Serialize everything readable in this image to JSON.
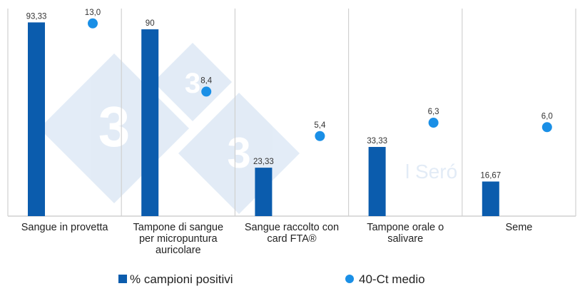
{
  "chart_data": {
    "type": "bar+scatter",
    "categories": [
      "Sangue in provetta",
      "Tampone di sangue per micropuntura auricolare",
      "Sangue raccolto con card FTA®",
      "Tampone orale o salivare",
      "Seme"
    ],
    "category_lines": [
      [
        "Sangue in provetta"
      ],
      [
        "Tampone di sangue",
        "per micropuntura",
        "auricolare"
      ],
      [
        "Sangue raccolto con",
        "card FTA®"
      ],
      [
        "Tampone orale o",
        "salivare"
      ],
      [
        "Seme"
      ]
    ],
    "series": [
      {
        "name": "% campioni positivi",
        "type": "bar",
        "axis": "primary",
        "values": [
          93.33,
          90,
          23.33,
          33.33,
          16.67
        ],
        "labels": [
          "93,33",
          "90",
          "23,33",
          "33,33",
          "16,67"
        ],
        "color": "#0b5cad"
      },
      {
        "name": "40-Ct medio",
        "type": "scatter",
        "axis": "secondary",
        "values": [
          13.0,
          8.4,
          5.4,
          6.3,
          6.0
        ],
        "labels": [
          "13,0",
          "8,4",
          "5,4",
          "6,3",
          "6,0"
        ],
        "color": "#1a8fe6"
      }
    ],
    "ylim": [
      0,
      100
    ],
    "y2lim": [
      0,
      14
    ],
    "axes_visible": false,
    "grid": "vertical category separators",
    "legend": "bottom",
    "watermark": "3 l Seró"
  }
}
